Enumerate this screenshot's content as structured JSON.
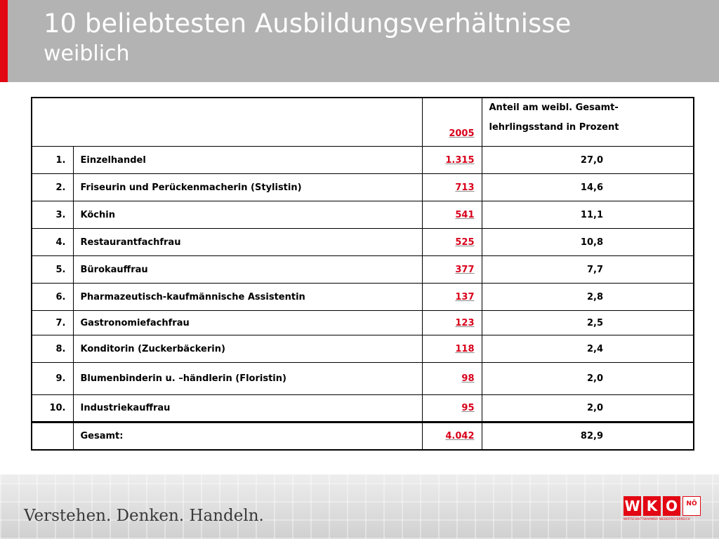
{
  "header": {
    "title": "10 beliebtesten Ausbildungsverhältnisse",
    "subtitle": "weiblich"
  },
  "table": {
    "col_year": "2005",
    "col_share_line1": "Anteil am weibl. Gesamt-",
    "col_share_line2": "lehrlingsstand in Prozent",
    "rows": [
      {
        "rank": "1.",
        "name": "Einzelhandel",
        "value": "1.315",
        "pct": "27,0"
      },
      {
        "rank": "2.",
        "name": "Friseurin und Perückenmacherin (Stylistin)",
        "value": "713",
        "pct": "14,6"
      },
      {
        "rank": "3.",
        "name": "Köchin",
        "value": "541",
        "pct": "11,1"
      },
      {
        "rank": "4.",
        "name": "Restaurantfachfrau",
        "value": "525",
        "pct": "10,8"
      },
      {
        "rank": "5.",
        "name": "Bürokauffrau",
        "value": "377",
        "pct": "7,7"
      },
      {
        "rank": "6.",
        "name": "Pharmazeutisch-kaufmännische Assistentin",
        "value": "137",
        "pct": "2,8"
      },
      {
        "rank": "7.",
        "name": "Gastronomiefachfrau",
        "value": "123",
        "pct": "2,5"
      },
      {
        "rank": "8.",
        "name": "Konditorin (Zuckerbäckerin)",
        "value": "118",
        "pct": "2,4"
      },
      {
        "rank": "9.",
        "name": "Blumenbinderin u. –händlerin (Floristin)",
        "value": "98",
        "pct": "2,0"
      },
      {
        "rank": "10.",
        "name": "Industriekauffrau",
        "value": "95",
        "pct": "2,0"
      }
    ],
    "total": {
      "label": "Gesamt:",
      "value": "4.042",
      "pct": "82,9"
    }
  },
  "footer": {
    "slogan": "Verstehen. Denken. Handeln.",
    "logo_letters": [
      "W",
      "K",
      "O"
    ],
    "logo_region": "NÖ",
    "logo_subline": "WIRTSCHAFTSKAMMER NIEDERÖSTERREICH"
  },
  "colors": {
    "accent": "#e30613",
    "header_bg": "#b3b3b3",
    "value_red": "#d9001b"
  }
}
